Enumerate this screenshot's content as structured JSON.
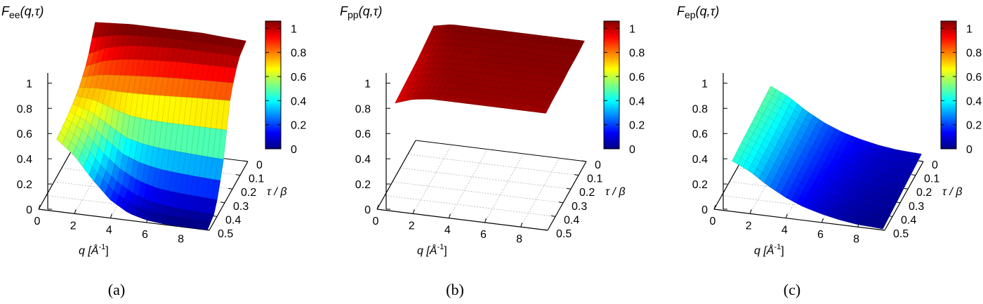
{
  "colorbar": {
    "ticks": [
      "0",
      "0.2",
      "0.4",
      "0.6",
      "0.8",
      "1"
    ],
    "palette": [
      "#00007f",
      "#0000ff",
      "#007fff",
      "#00ffff",
      "#7fff7f",
      "#ffff00",
      "#ff7f00",
      "#ff0000",
      "#7f0000"
    ]
  },
  "chart_data": [
    {
      "type": "surface",
      "title_main": "F",
      "title_sub": "ee",
      "title_args": "(q,τ)",
      "xlabel": "q [Å",
      "xlabel_exp": "-1",
      "xlabel_close": "]",
      "ylabel": "τ / β",
      "xticks": [
        "0",
        "2",
        "4",
        "6",
        "8"
      ],
      "yticks": [
        "0",
        "0.1",
        "0.2",
        "0.3",
        "0.4",
        "0.5"
      ],
      "zticks": [
        "0",
        "0.2",
        "0.4",
        "0.6",
        "0.8",
        "1"
      ],
      "xlim": [
        0,
        9.5
      ],
      "ylim": [
        0,
        0.5
      ],
      "zlim": [
        0,
        1.05
      ],
      "colorbar_range": [
        0,
        1
      ],
      "grid": true,
      "caption": "(a)",
      "sampled": {
        "q": [
          1,
          2,
          3,
          4,
          5,
          6,
          7,
          8,
          9.4
        ],
        "tau": [
          0,
          0.1,
          0.2,
          0.3,
          0.4,
          0.5
        ],
        "F": [
          [
            1.0,
            1.01,
            1.02,
            1.02,
            1.02,
            1.02,
            1.02,
            1.01,
            1.0
          ],
          [
            0.8,
            0.88,
            0.92,
            0.94,
            0.95,
            0.96,
            0.96,
            0.96,
            0.96
          ],
          [
            0.7,
            0.72,
            0.72,
            0.73,
            0.74,
            0.75,
            0.76,
            0.77,
            0.78
          ],
          [
            0.65,
            0.6,
            0.5,
            0.4,
            0.36,
            0.34,
            0.33,
            0.32,
            0.31
          ],
          [
            0.62,
            0.52,
            0.35,
            0.22,
            0.13,
            0.08,
            0.06,
            0.05,
            0.04
          ],
          [
            0.6,
            0.48,
            0.3,
            0.15,
            0.06,
            0.02,
            0.005,
            0.002,
            0.0
          ]
        ]
      }
    },
    {
      "type": "surface",
      "title_main": "F",
      "title_sub": "pp",
      "title_args": "(q,τ)",
      "xlabel": "q [Å",
      "xlabel_exp": "-1",
      "xlabel_close": "]",
      "ylabel": "τ / β",
      "xticks": [
        "0",
        "2",
        "4",
        "6",
        "8"
      ],
      "yticks": [
        "0",
        "0.1",
        "0.2",
        "0.3",
        "0.4",
        "0.5"
      ],
      "zticks": [
        "0",
        "0.2",
        "0.4",
        "0.6",
        "0.8",
        "1"
      ],
      "xlim": [
        0,
        9.5
      ],
      "ylim": [
        0,
        0.5
      ],
      "zlim": [
        0,
        1.05
      ],
      "colorbar_range": [
        0,
        1
      ],
      "grid": true,
      "caption": "(b)",
      "sampled": {
        "q": [
          1,
          2,
          3,
          4,
          5,
          6,
          7,
          8,
          9.4
        ],
        "tau": [
          0,
          0.1,
          0.2,
          0.3,
          0.4,
          0.5
        ],
        "F": [
          [
            0.97,
            1.0,
            1.0,
            1.0,
            1.0,
            1.0,
            1.0,
            1.0,
            1.0
          ],
          [
            0.95,
            0.98,
            0.99,
            0.99,
            0.99,
            0.99,
            0.99,
            0.99,
            0.99
          ],
          [
            0.93,
            0.97,
            0.98,
            0.98,
            0.99,
            0.99,
            0.99,
            0.99,
            0.99
          ],
          [
            0.92,
            0.96,
            0.98,
            0.98,
            0.98,
            0.98,
            0.98,
            0.98,
            0.98
          ],
          [
            0.91,
            0.95,
            0.97,
            0.98,
            0.98,
            0.98,
            0.98,
            0.98,
            0.98
          ],
          [
            0.9,
            0.95,
            0.97,
            0.97,
            0.97,
            0.97,
            0.97,
            0.97,
            0.97
          ]
        ]
      }
    },
    {
      "type": "surface",
      "title_main": "F",
      "title_sub": "ep",
      "title_args": "(q,τ)",
      "xlabel": "q [Å",
      "xlabel_exp": "-1",
      "xlabel_close": "]",
      "ylabel": "τ / β",
      "xticks": [
        "0",
        "2",
        "4",
        "6",
        "8"
      ],
      "yticks": [
        "0",
        "0.1",
        "0.2",
        "0.3",
        "0.4",
        "0.5"
      ],
      "zticks": [
        "0",
        "0.2",
        "0.4",
        "0.6",
        "0.8",
        "1"
      ],
      "xlim": [
        0,
        9.5
      ],
      "ylim": [
        0,
        0.5
      ],
      "zlim": [
        0,
        1.05
      ],
      "colorbar_range": [
        0,
        1
      ],
      "grid": true,
      "caption": "(c)",
      "sampled": {
        "q": [
          1,
          2,
          3,
          4,
          5,
          6,
          7,
          8,
          9.4
        ],
        "tau": [
          0,
          0.1,
          0.2,
          0.3,
          0.4,
          0.5
        ],
        "F": [
          [
            0.47,
            0.4,
            0.3,
            0.22,
            0.16,
            0.12,
            0.09,
            0.07,
            0.06
          ],
          [
            0.46,
            0.39,
            0.29,
            0.21,
            0.15,
            0.11,
            0.08,
            0.06,
            0.05
          ],
          [
            0.45,
            0.38,
            0.28,
            0.2,
            0.14,
            0.1,
            0.07,
            0.05,
            0.04
          ],
          [
            0.44,
            0.37,
            0.27,
            0.19,
            0.13,
            0.09,
            0.06,
            0.04,
            0.03
          ],
          [
            0.43,
            0.36,
            0.26,
            0.18,
            0.12,
            0.08,
            0.05,
            0.035,
            0.02
          ],
          [
            0.42,
            0.35,
            0.25,
            0.17,
            0.11,
            0.07,
            0.04,
            0.02,
            0.01
          ]
        ]
      }
    }
  ]
}
